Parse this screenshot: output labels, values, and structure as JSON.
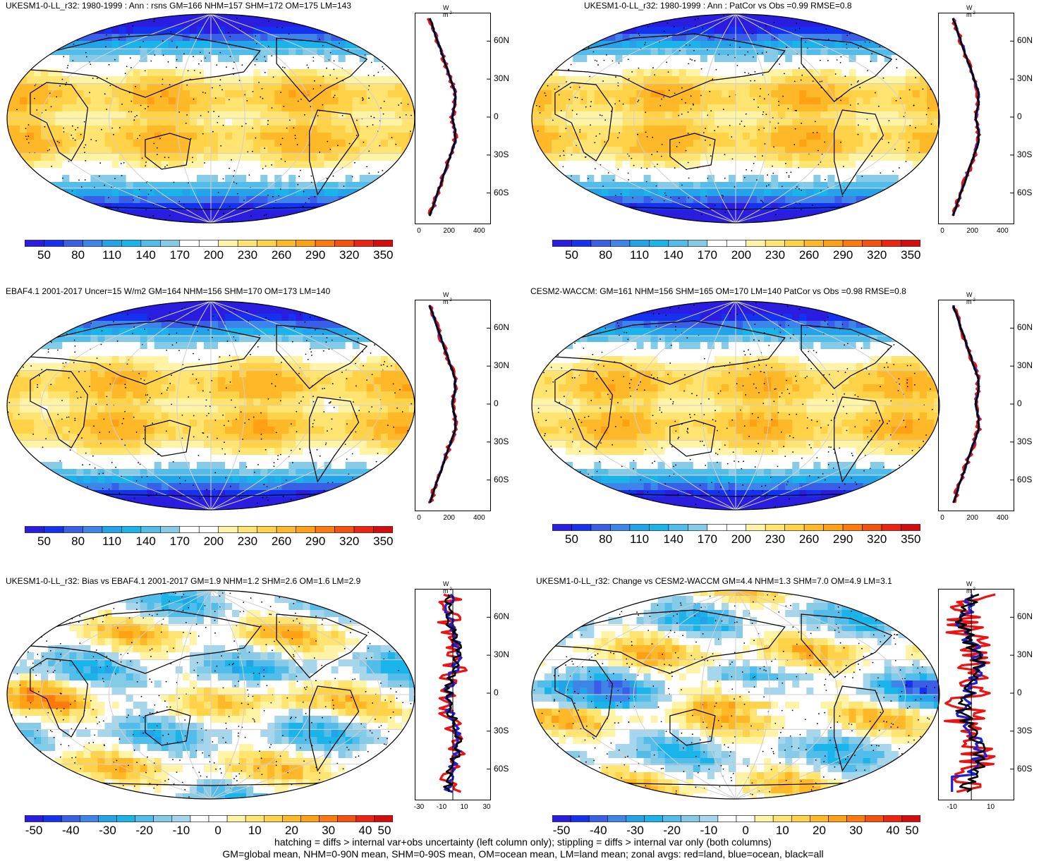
{
  "panels": [
    {
      "id": "p1",
      "title": "UKESM1-0-LL_r32: 1980-1999 : Ann : rsns GM=166 NHM=157 SHM=172 OM=175 LM=143",
      "kind": "mean",
      "colorbar": {
        "labels": [
          "50",
          "80",
          "110",
          "140",
          "170",
          "200",
          "230",
          "260",
          "290",
          "320",
          "350"
        ]
      },
      "zonal": {
        "unit": "W m",
        "unit_sup": "-2",
        "xticks": [
          "0",
          "200",
          "400"
        ],
        "xlim": [
          0,
          450
        ],
        "yticks": [
          "60N",
          "30N",
          "0",
          "30S",
          "60S"
        ]
      }
    },
    {
      "id": "p2",
      "title": "UKESM1-0-LL_r32: 1980-1999 : Ann : PatCor vs Obs =0.99 RMSE=0.8",
      "kind": "mean",
      "colorbar": {
        "labels": [
          "50",
          "80",
          "110",
          "140",
          "170",
          "200",
          "230",
          "260",
          "290",
          "320",
          "350"
        ]
      },
      "zonal": {
        "unit": "W m",
        "unit_sup": "-2",
        "xticks": [
          "0",
          "200",
          "400"
        ],
        "xlim": [
          0,
          450
        ],
        "yticks": [
          "60N",
          "30N",
          "0",
          "30S",
          "60S"
        ]
      }
    },
    {
      "id": "p3",
      "title": "EBAF4.1 2001-2017 Uncer=15 W/m2 GM=164 NHM=156 SHM=170 OM=173 LM=140",
      "kind": "mean",
      "colorbar": {
        "labels": [
          "50",
          "80",
          "110",
          "140",
          "170",
          "200",
          "230",
          "260",
          "290",
          "320",
          "350"
        ]
      },
      "zonal": {
        "unit": "W m",
        "unit_sup": "-2",
        "xticks": [
          "0",
          "200",
          "400"
        ],
        "xlim": [
          0,
          450
        ],
        "yticks": [
          "60N",
          "30N",
          "0",
          "30S",
          "60S"
        ]
      }
    },
    {
      "id": "p4",
      "title": "CESM2-WACCM: GM=161 NHM=156 SHM=165 OM=170 LM=140 PatCor vs Obs =0.98 RMSE=0.8",
      "kind": "mean",
      "colorbar": {
        "labels": [
          "50",
          "80",
          "110",
          "140",
          "170",
          "200",
          "230",
          "260",
          "290",
          "320",
          "350"
        ]
      },
      "zonal": {
        "unit": "W m",
        "unit_sup": "-2",
        "xticks": [
          "0",
          "200",
          "400"
        ],
        "xlim": [
          0,
          450
        ],
        "yticks": [
          "60N",
          "30N",
          "0",
          "30S",
          "60S"
        ]
      }
    },
    {
      "id": "p5",
      "title": "UKESM1-0-LL_r32: Bias vs EBAF4.1 2001-2017 GM=1.9 NHM=1.2 SHM=2.6 OM=1.6 LM=2.9",
      "kind": "diff",
      "colorbar": {
        "labels": [
          "-50",
          "-40",
          "-30",
          "-20",
          "-10",
          "0",
          "10",
          "20",
          "30",
          "40",
          "50"
        ]
      },
      "zonal": {
        "unit": "W m",
        "unit_sup": "-2",
        "xticks": [
          "-30",
          "-10",
          "10",
          "30"
        ],
        "xlim": [
          -30,
          30
        ],
        "yticks": [
          "60N",
          "30N",
          "0",
          "30S",
          "60S"
        ]
      }
    },
    {
      "id": "p6",
      "title": "UKESM1-0-LL_r32: Change vs CESM2-WACCM GM=4.4 NHM=1.3 SHM=7.0 OM=4.9 LM=3.1",
      "kind": "diff",
      "colorbar": {
        "labels": [
          "-50",
          "-40",
          "-30",
          "-20",
          "-10",
          "0",
          "10",
          "20",
          "30",
          "40",
          "50"
        ]
      },
      "zonal": {
        "unit": "W m",
        "unit_sup": "-2",
        "xticks": [
          "-10",
          "10"
        ],
        "xlim": [
          -15,
          20
        ],
        "yticks": [
          "60N",
          "30N",
          "0",
          "30S",
          "60S"
        ]
      }
    }
  ],
  "colors": {
    "mean_scale": [
      "#2b1de0",
      "#1432f0",
      "#3a5fe6",
      "#3f84e9",
      "#22a3ea",
      "#19b4ea",
      "#52bdea",
      "#85cbe8",
      "#ffffff",
      "#ffffff",
      "#fff4a6",
      "#ffe472",
      "#ffd247",
      "#ffb928",
      "#ffa015",
      "#ff7a0e",
      "#f5520d",
      "#ee2412",
      "#d40c0c"
    ],
    "diff_scale": [
      "#2b1de0",
      "#1432f0",
      "#3a5fe6",
      "#3f84e9",
      "#22a3ea",
      "#19b4ea",
      "#52bdea",
      "#85cbe8",
      "#a6d6ec",
      "#ffffff",
      "#ffffff",
      "#fff4a6",
      "#ffe472",
      "#ffd247",
      "#ffb928",
      "#ffa015",
      "#ff7a0e",
      "#f5520d",
      "#ee2412",
      "#d40c0c"
    ],
    "zonal_land": "#ee1111",
    "zonal_ocean": "#1a22d6",
    "zonal_all": "#000000"
  },
  "footer": {
    "line1": "hatching = diffs > internal var+obs uncertainty (left column only); stippling = diffs > internal var only (both columns)",
    "line2": "GM=global mean, NHM=0-90N mean, SHM=0-90S mean, OM=ocean mean, LM=land mean; zonal avgs: red=land, blue=ocean, black=all"
  }
}
